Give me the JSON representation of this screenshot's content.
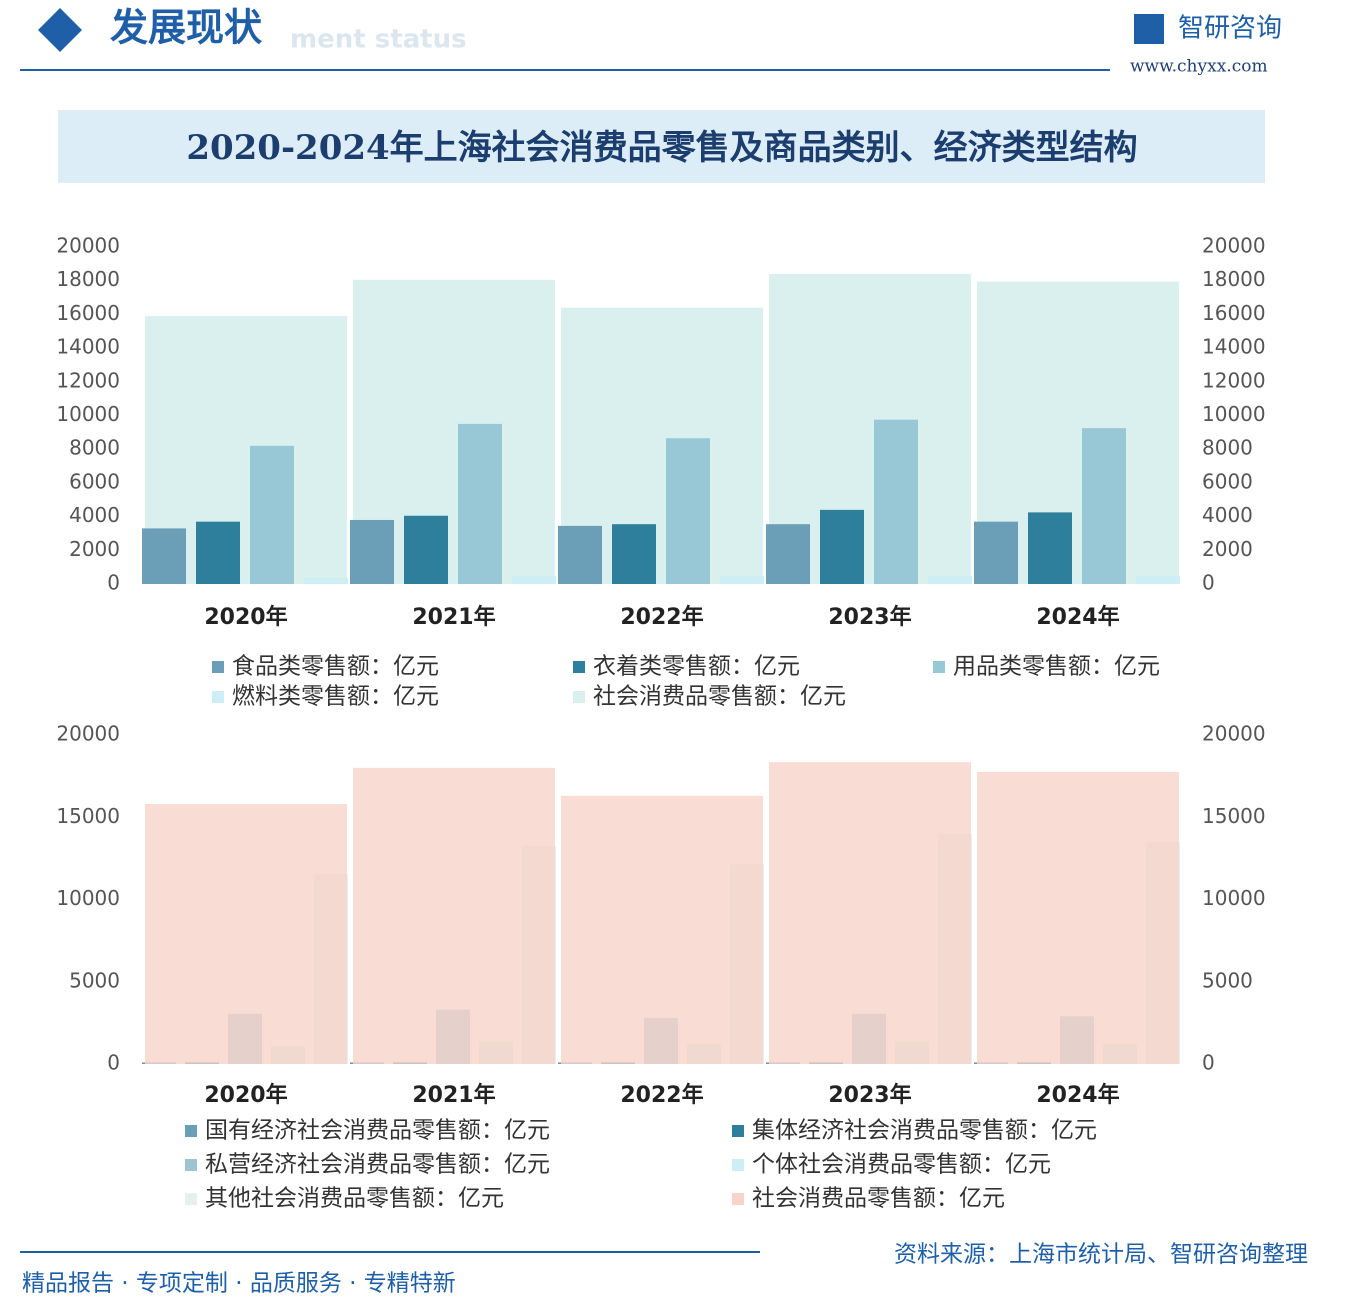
{
  "header": {
    "title": "发展现状",
    "subtitle": "ment status",
    "logo": "智研咨询",
    "url": "www.chyxx.com"
  },
  "title": "2020-2024年上海社会消费品零售及商品类别、经济类型结构",
  "chart_data": [
    {
      "type": "bar",
      "categories": [
        "2020年",
        "2021年",
        "2022年",
        "2023年",
        "2024年"
      ],
      "series": [
        {
          "name": "食品类零售额：亿元",
          "color": "#6b9fb8",
          "values": [
            3300,
            3800,
            3450,
            3550,
            3700
          ]
        },
        {
          "name": "衣着类零售额：亿元",
          "color": "#2e7f9c",
          "values": [
            3700,
            4050,
            3550,
            4400,
            4250
          ]
        },
        {
          "name": "用品类零售额：亿元",
          "color": "#98c7d6",
          "values": [
            8200,
            9500,
            8650,
            9750,
            9250
          ]
        },
        {
          "name": "燃料类零售额：亿元",
          "color": "#cdeef5",
          "values": [
            350,
            450,
            450,
            450,
            450
          ]
        },
        {
          "name": "社会消费品零售额：亿元",
          "color": "#d9f0ee",
          "values": [
            15900,
            18050,
            16400,
            18400,
            17950
          ]
        }
      ],
      "ylim": [
        0,
        20000
      ],
      "yticks": [
        0,
        2000,
        4000,
        6000,
        8000,
        10000,
        12000,
        14000,
        16000,
        18000,
        20000
      ],
      "y2lim": [
        0,
        20000
      ],
      "y2ticks": [
        0,
        2000,
        4000,
        6000,
        8000,
        10000,
        12000,
        14000,
        16000,
        18000,
        20000
      ]
    },
    {
      "type": "bar",
      "categories": [
        "2020年",
        "2021年",
        "2022年",
        "2023年",
        "2024年"
      ],
      "series": [
        {
          "name": "国有经济社会消费品零售额：亿元",
          "color": "#6b9fb8",
          "values": [
            100,
            100,
            100,
            100,
            100
          ]
        },
        {
          "name": "集体经济社会消费品零售额：亿元",
          "color": "#2e7f9c",
          "values": [
            100,
            100,
            100,
            100,
            100
          ]
        },
        {
          "name": "私营经济社会消费品零售额：亿元",
          "color": "#9ec4d4",
          "values": [
            3050,
            3300,
            2800,
            3050,
            2900
          ]
        },
        {
          "name": "个体社会消费品零售额：亿元",
          "color": "#cdeef5",
          "values": [
            1100,
            1350,
            1200,
            1350,
            1200
          ]
        },
        {
          "name": "其他社会消费品零售额：亿元",
          "color": "#e6eeee",
          "values": [
            11550,
            13250,
            12150,
            14000,
            13500
          ]
        },
        {
          "name": "社会消费品零售额：亿元",
          "color": "#f8d3c8",
          "values": [
            15800,
            18000,
            16300,
            18350,
            17750
          ]
        }
      ],
      "ylim": [
        0,
        20000
      ],
      "yticks": [
        0,
        5000,
        10000,
        15000,
        20000
      ],
      "y2lim": [
        0,
        20000
      ],
      "y2ticks": [
        0,
        5000,
        10000,
        15000,
        20000
      ]
    }
  ],
  "footer": {
    "slogan": "精品报告 · 专项定制 · 品质服务 · 专精特新",
    "source": "资料来源：上海市统计局、智研咨询整理"
  }
}
